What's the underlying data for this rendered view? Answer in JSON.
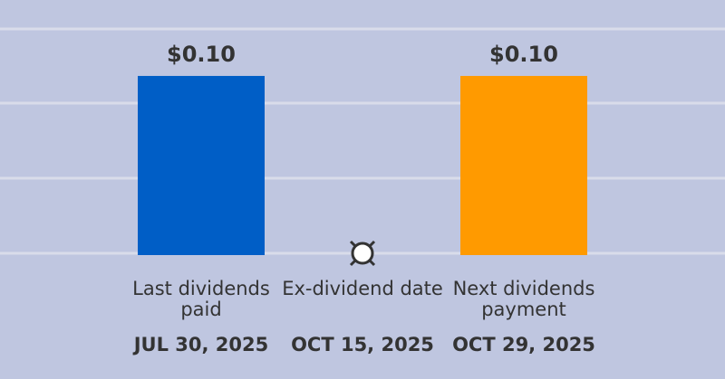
{
  "chart_data": {
    "type": "bar",
    "categories": [
      "Last dividends paid",
      "Ex-dividend date",
      "Next dividends payment"
    ],
    "dates": [
      "JUL 30, 2025",
      "OCT 15, 2025",
      "OCT 29, 2025"
    ],
    "values": [
      0.1,
      null,
      0.1
    ],
    "value_labels": [
      "$0.10",
      null,
      "$0.10"
    ],
    "colors": [
      "#005ec6",
      null,
      "#ff9a00"
    ],
    "ylim": [
      0,
      0.1265
    ]
  }
}
